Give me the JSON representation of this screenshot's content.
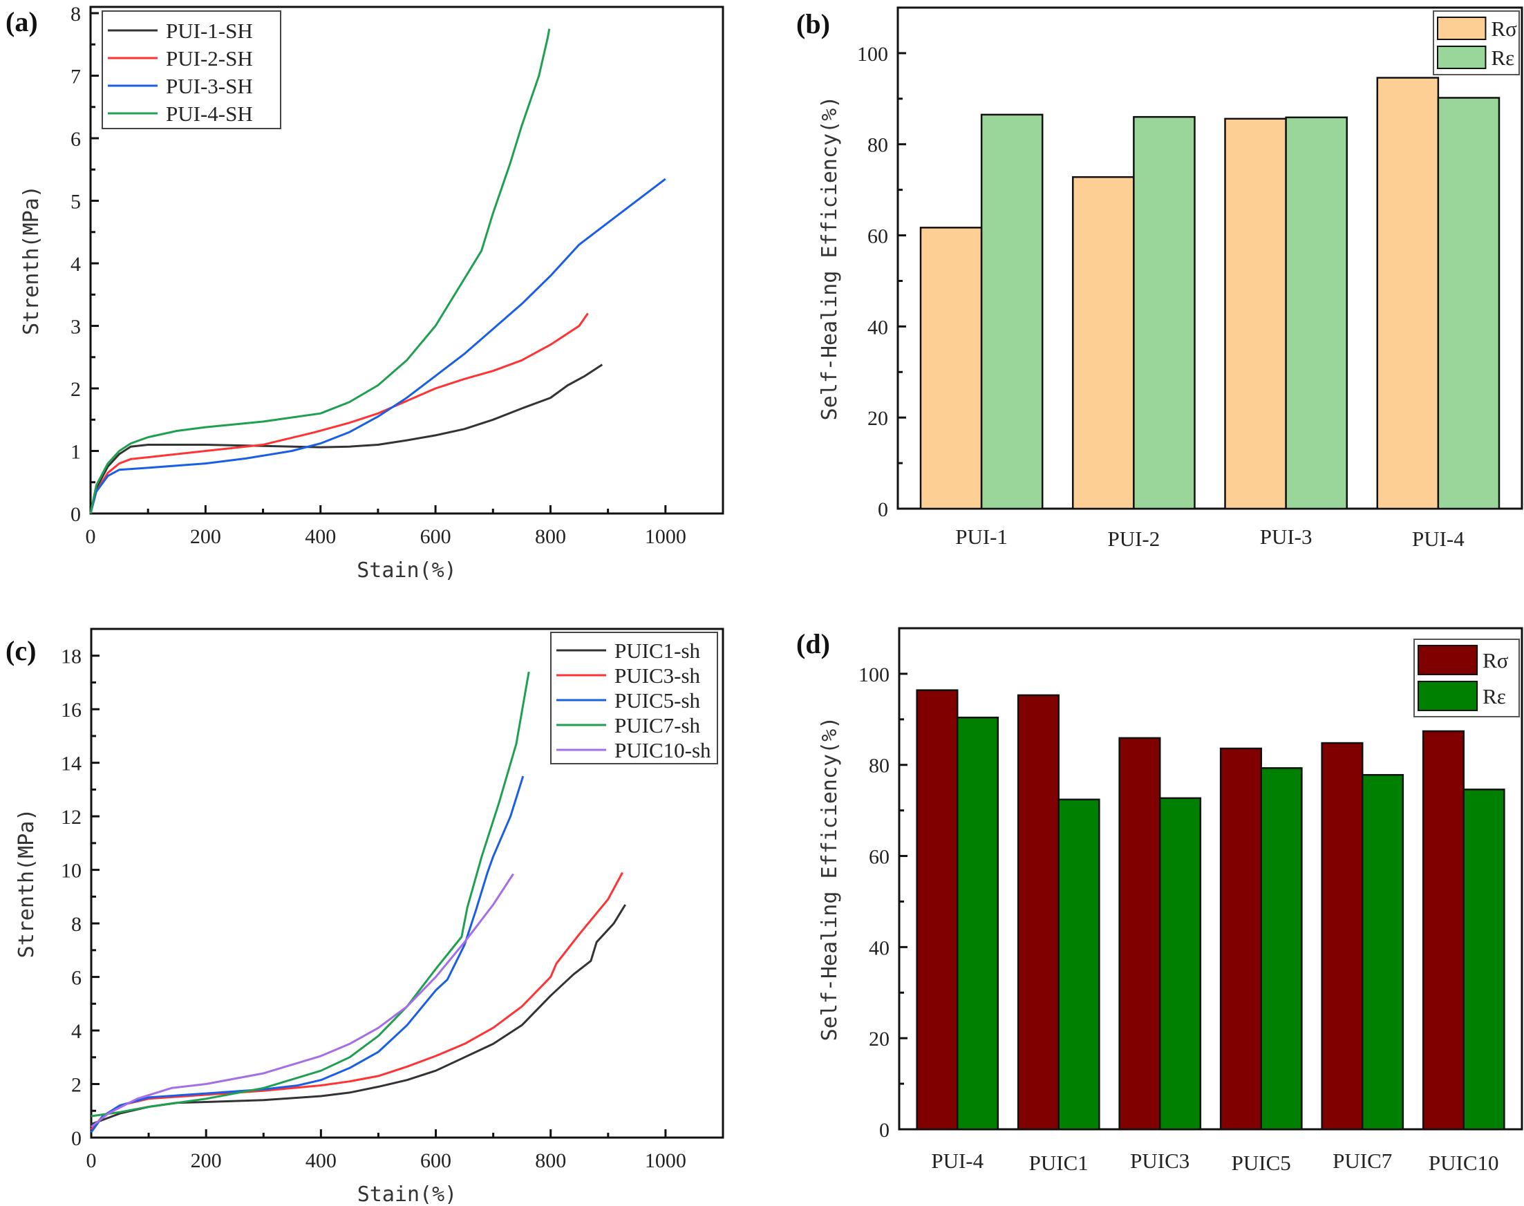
{
  "chart_data": [
    {
      "panel": "(a)",
      "type": "line",
      "title": "",
      "xlabel": "Stain(%)",
      "ylabel": "Strenth(MPa)",
      "xlim": [
        0,
        1100
      ],
      "ylim": [
        0,
        8.1
      ],
      "xticks": [
        0,
        200,
        400,
        600,
        800,
        1000
      ],
      "yticks": [
        0,
        1,
        2,
        3,
        4,
        5,
        6,
        7,
        8
      ],
      "grid": false,
      "legend_position": "top-left",
      "series": [
        {
          "name": "PUI-1-SH",
          "color": "#333333",
          "x": [
            0,
            10,
            30,
            50,
            70,
            100,
            200,
            300,
            400,
            450,
            500,
            550,
            600,
            650,
            700,
            750,
            800,
            830,
            860,
            890
          ],
          "y": [
            0,
            0.4,
            0.75,
            0.95,
            1.07,
            1.1,
            1.1,
            1.08,
            1.06,
            1.07,
            1.1,
            1.17,
            1.25,
            1.35,
            1.5,
            1.68,
            1.85,
            2.05,
            2.2,
            2.38
          ]
        },
        {
          "name": "PUI-2-SH",
          "color": "#ff3333",
          "x": [
            0,
            10,
            30,
            50,
            70,
            100,
            200,
            300,
            390,
            450,
            500,
            550,
            600,
            650,
            700,
            750,
            800,
            850,
            865
          ],
          "y": [
            0,
            0.35,
            0.65,
            0.8,
            0.87,
            0.9,
            1.0,
            1.1,
            1.3,
            1.45,
            1.6,
            1.8,
            2.0,
            2.15,
            2.28,
            2.45,
            2.7,
            3.0,
            3.2
          ]
        },
        {
          "name": "PUI-3-SH",
          "color": "#1a5ee6",
          "x": [
            0,
            10,
            30,
            50,
            100,
            200,
            270,
            350,
            400,
            450,
            500,
            550,
            600,
            650,
            700,
            750,
            800,
            850,
            900,
            1000
          ],
          "y": [
            0,
            0.35,
            0.6,
            0.7,
            0.73,
            0.8,
            0.88,
            1.0,
            1.12,
            1.3,
            1.55,
            1.85,
            2.2,
            2.55,
            2.95,
            3.35,
            3.8,
            4.3,
            4.65,
            5.35
          ]
        },
        {
          "name": "PUI-4-SH",
          "color": "#1fa050",
          "x": [
            0,
            10,
            30,
            50,
            70,
            100,
            150,
            200,
            300,
            400,
            450,
            500,
            550,
            600,
            650,
            680,
            700,
            730,
            750,
            780,
            795,
            798
          ],
          "y": [
            0,
            0.45,
            0.8,
            1.0,
            1.12,
            1.22,
            1.32,
            1.38,
            1.47,
            1.6,
            1.78,
            2.05,
            2.45,
            3.0,
            3.75,
            4.2,
            4.8,
            5.6,
            6.2,
            7.0,
            7.6,
            7.75
          ]
        }
      ]
    },
    {
      "panel": "(b)",
      "type": "bar",
      "title": "",
      "xlabel": "",
      "ylabel": "Self-Healing Efficiency(%)",
      "ylim": [
        0,
        110
      ],
      "yticks": [
        0,
        20,
        40,
        60,
        80,
        100
      ],
      "grid": false,
      "legend_position": "top-right",
      "categories": [
        "PUI-1",
        "PUI-2",
        "PUI-3",
        "PUI-4"
      ],
      "series": [
        {
          "name": "Rσ",
          "color": "#fecf94",
          "values": [
            61.7,
            72.8,
            85.6,
            94.6
          ]
        },
        {
          "name": "Rε",
          "color": "#9ad69a",
          "values": [
            86.5,
            86.0,
            85.9,
            90.2
          ]
        }
      ]
    },
    {
      "panel": "(c)",
      "type": "line",
      "title": "",
      "xlabel": "Stain(%)",
      "ylabel": "Strenth(MPa)",
      "xlim": [
        0,
        1100
      ],
      "ylim": [
        0,
        19
      ],
      "xticks": [
        0,
        200,
        400,
        600,
        800,
        1000
      ],
      "yticks": [
        0,
        2,
        4,
        6,
        8,
        10,
        12,
        14,
        16,
        18
      ],
      "grid": false,
      "legend_position": "top-right",
      "series": [
        {
          "name": "PUIC1-sh",
          "color": "#333333",
          "x": [
            0,
            50,
            100,
            150,
            200,
            300,
            400,
            450,
            500,
            550,
            600,
            650,
            700,
            750,
            800,
            840,
            870,
            880,
            910,
            930
          ],
          "y": [
            0.5,
            0.9,
            1.15,
            1.3,
            1.33,
            1.4,
            1.55,
            1.68,
            1.9,
            2.15,
            2.5,
            3.0,
            3.5,
            4.2,
            5.3,
            6.1,
            6.6,
            7.3,
            8.0,
            8.7
          ]
        },
        {
          "name": "PUIC3-sh",
          "color": "#ff3333",
          "x": [
            0,
            20,
            50,
            100,
            200,
            300,
            400,
            450,
            500,
            550,
            600,
            650,
            700,
            750,
            800,
            810,
            850,
            900,
            925
          ],
          "y": [
            0.3,
            0.8,
            1.2,
            1.45,
            1.6,
            1.75,
            1.95,
            2.1,
            2.3,
            2.65,
            3.05,
            3.5,
            4.1,
            4.9,
            6.0,
            6.5,
            7.6,
            8.9,
            9.9
          ]
        },
        {
          "name": "PUIC5-sh",
          "color": "#1a5ee6",
          "x": [
            0,
            20,
            50,
            100,
            200,
            300,
            360,
            400,
            450,
            500,
            550,
            600,
            620,
            650,
            670,
            690,
            700,
            730,
            752
          ],
          "y": [
            0.2,
            0.8,
            1.2,
            1.5,
            1.65,
            1.8,
            1.95,
            2.15,
            2.6,
            3.2,
            4.2,
            5.5,
            5.9,
            7.2,
            8.5,
            9.9,
            10.5,
            12.0,
            13.5
          ]
        },
        {
          "name": "PUIC7-sh",
          "color": "#1fa050",
          "x": [
            0,
            50,
            100,
            200,
            300,
            400,
            450,
            500,
            550,
            600,
            645,
            655,
            680,
            710,
            740,
            762
          ],
          "y": [
            0.8,
            0.95,
            1.15,
            1.45,
            1.85,
            2.5,
            3.0,
            3.8,
            4.9,
            6.3,
            7.5,
            8.6,
            10.5,
            12.5,
            14.7,
            17.4
          ]
        },
        {
          "name": "PUIC10-sh",
          "color": "#a46ee8",
          "x": [
            0,
            30,
            80,
            140,
            200,
            300,
            400,
            450,
            500,
            550,
            600,
            650,
            700,
            735
          ],
          "y": [
            0.4,
            0.9,
            1.45,
            1.85,
            2.0,
            2.4,
            3.05,
            3.5,
            4.1,
            4.9,
            6.0,
            7.3,
            8.7,
            9.85
          ]
        }
      ]
    },
    {
      "panel": "(d)",
      "type": "bar",
      "title": "",
      "xlabel": "",
      "ylabel": "Self-Healing Efficiency(%)",
      "ylim": [
        0,
        110
      ],
      "yticks": [
        0,
        20,
        40,
        60,
        80,
        100
      ],
      "grid": false,
      "legend_position": "top-right",
      "categories": [
        "PUI-4",
        "PUIC1",
        "PUIC3",
        "PUIC5",
        "PUIC7",
        "PUIC10"
      ],
      "series": [
        {
          "name": "Rσ",
          "color": "#800000",
          "values": [
            96.4,
            95.3,
            85.9,
            83.6,
            84.8,
            87.4
          ]
        },
        {
          "name": "Rε",
          "color": "#008000",
          "values": [
            90.4,
            72.4,
            72.7,
            79.3,
            77.8,
            74.6
          ]
        }
      ]
    }
  ]
}
